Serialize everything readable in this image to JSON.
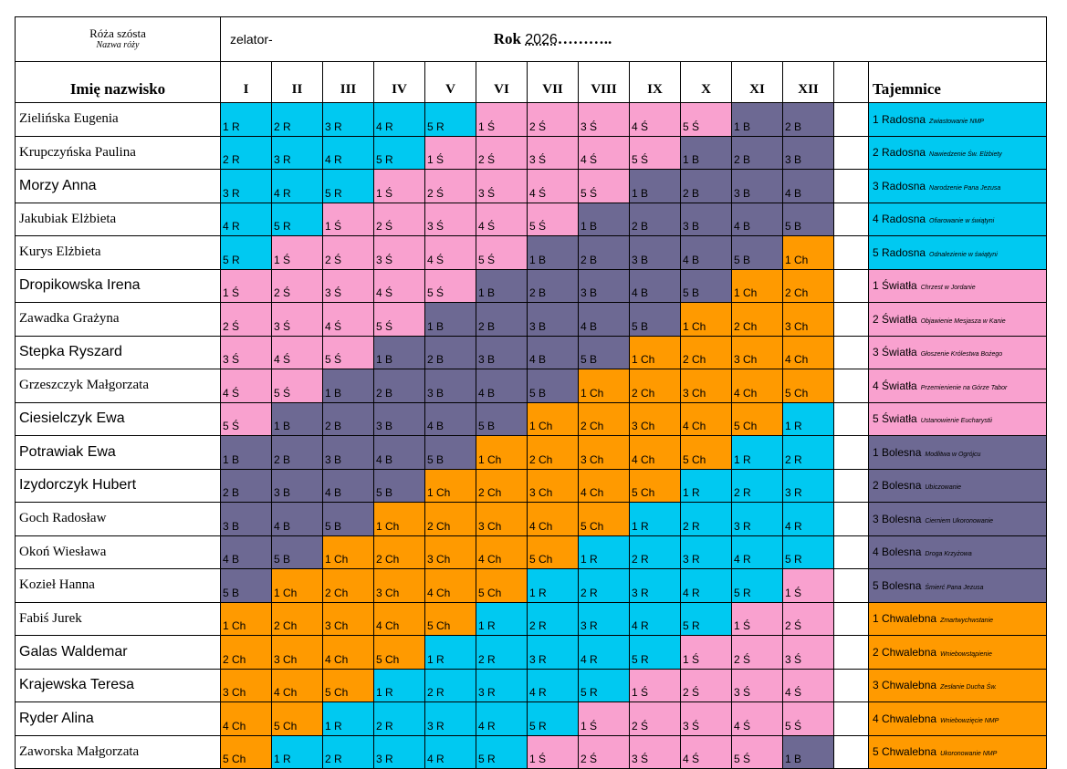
{
  "rose": {
    "name": "Róża szósta",
    "subtitle": "Nazwa róży"
  },
  "zelator_label": "zelator-",
  "rok": {
    "label": "Rok",
    "year": "2026",
    "dots": "……….."
  },
  "headers": {
    "name": "Imię nazwisko",
    "mysteries": "Tajemnice"
  },
  "months": [
    "I",
    "II",
    "III",
    "IV",
    "V",
    "VI",
    "VII",
    "VIII",
    "IX",
    "X",
    "XI",
    "XII"
  ],
  "colors": {
    "R": "#00c9f1",
    "S": "#f9a1cf",
    "B": "#6d6993",
    "Ch": "#ff9a00"
  },
  "rows": [
    {
      "name": "Zielińska Eugenia",
      "cells": [
        "1 R",
        "2 R",
        "3 R",
        "4 R",
        "5 R",
        "1 Ś",
        "2 Ś",
        "3 Ś",
        "4 Ś",
        "5 Ś",
        "1 B",
        "2 B"
      ]
    },
    {
      "name": "Krupczyńska Paulina",
      "cells": [
        "2 R",
        "3 R",
        "4 R",
        "5 R",
        "1 Ś",
        "2 Ś",
        "3 Ś",
        "4 Ś",
        "5 Ś",
        "1 B",
        "2 B",
        "3 B"
      ]
    },
    {
      "name": "Morzy Anna",
      "cells": [
        "3 R",
        "4 R",
        "5 R",
        "1 Ś",
        "2 Ś",
        "3 Ś",
        "4 Ś",
        "5 Ś",
        "1 B",
        "2 B",
        "3 B",
        "4 B"
      ]
    },
    {
      "name": "Jakubiak Elżbieta",
      "cells": [
        "4 R",
        "5 R",
        "1 Ś",
        "2 Ś",
        "3 Ś",
        "4 Ś",
        "5 Ś",
        "1 B",
        "2 B",
        "3 B",
        "4 B",
        "5 B"
      ]
    },
    {
      "name": "Kurys Elżbieta",
      "cells": [
        "5 R",
        "1 Ś",
        "2 Ś",
        "3 Ś",
        "4 Ś",
        "5 Ś",
        "1 B",
        "2 B",
        "3 B",
        "4 B",
        "5 B",
        "1 Ch"
      ]
    },
    {
      "name": "Dropikowska Irena",
      "cells": [
        "1 Ś",
        "2 Ś",
        "3 Ś",
        "4 Ś",
        "5 Ś",
        "1 B",
        "2 B",
        "3 B",
        "4 B",
        "5 B",
        "1 Ch",
        "2 Ch"
      ]
    },
    {
      "name": "Zawadka Grażyna",
      "cells": [
        "2 Ś",
        "3 Ś",
        "4 Ś",
        "5 Ś",
        "1 B",
        "2 B",
        "3 B",
        "4 B",
        "5 B",
        "1 Ch",
        "2 Ch",
        "3 Ch"
      ]
    },
    {
      "name": "Stepka Ryszard",
      "cells": [
        "3 Ś",
        "4 Ś",
        "5 Ś",
        "1 B",
        "2 B",
        "3 B",
        "4 B",
        "5 B",
        "1 Ch",
        "2 Ch",
        "3 Ch",
        "4 Ch"
      ]
    },
    {
      "name": "Grzeszczyk Małgorzata",
      "cells": [
        "4 Ś",
        "5 Ś",
        "1 B",
        "2 B",
        "3 B",
        "4 B",
        "5 B",
        "1 Ch",
        "2 Ch",
        "3 Ch",
        "4 Ch",
        "5 Ch"
      ]
    },
    {
      "name": "Ciesielczyk Ewa",
      "cells": [
        "5 Ś",
        "1 B",
        "2 B",
        "3 B",
        "4 B",
        "5 B",
        "1 Ch",
        "2 Ch",
        "3 Ch",
        "4 Ch",
        "5 Ch",
        "1 R"
      ]
    },
    {
      "name": "Potrawiak Ewa",
      "cells": [
        "1 B",
        "2 B",
        "3 B",
        "4 B",
        "5 B",
        "1 Ch",
        "2 Ch",
        "3 Ch",
        "4 Ch",
        "5 Ch",
        "1 R",
        "2 R"
      ]
    },
    {
      "name": "Izydorczyk Hubert",
      "cells": [
        "2 B",
        "3 B",
        "4 B",
        "5 B",
        "1 Ch",
        "2 Ch",
        "3 Ch",
        "4 Ch",
        "5 Ch",
        "1 R",
        "2 R",
        "3 R"
      ]
    },
    {
      "name": "Goch Radosław",
      "cells": [
        "3 B",
        "4 B",
        "5 B",
        "1 Ch",
        "2 Ch",
        "3 Ch",
        "4 Ch",
        "5 Ch",
        "1 R",
        "2 R",
        "3 R",
        "4 R"
      ]
    },
    {
      "name": "Okoń Wiesława",
      "cells": [
        "4 B",
        "5 B",
        "1 Ch",
        "2 Ch",
        "3 Ch",
        "4 Ch",
        "5 Ch",
        "1 R",
        "2 R",
        "3 R",
        "4 R",
        "5 R"
      ]
    },
    {
      "name": "Kozieł Hanna",
      "cells": [
        "5 B",
        "1 Ch",
        "2 Ch",
        "3 Ch",
        "4 Ch",
        "5 Ch",
        "1 R",
        "2 R",
        "3 R",
        "4 R",
        "5 R",
        "1 Ś"
      ]
    },
    {
      "name": "Fabiś Jurek",
      "cells": [
        "1 Ch",
        "2 Ch",
        "3 Ch",
        "4 Ch",
        "5 Ch",
        "1 R",
        "2 R",
        "3 R",
        "4 R",
        "5 R",
        "1 Ś",
        "2 Ś"
      ]
    },
    {
      "name": "Galas Waldemar",
      "cells": [
        "2 Ch",
        "3 Ch",
        "4 Ch",
        "5 Ch",
        "1 R",
        "2 R",
        "3 R",
        "4 R",
        "5 R",
        "1 Ś",
        "2 Ś",
        "3 Ś"
      ]
    },
    {
      "name": "Krajewska Teresa",
      "cells": [
        "3 Ch",
        "4 Ch",
        "5 Ch",
        "1 R",
        "2 R",
        "3 R",
        "4 R",
        "5 R",
        "1 Ś",
        "2 Ś",
        "3 Ś",
        "4 Ś"
      ]
    },
    {
      "name": "Ryder Alina",
      "cells": [
        "4 Ch",
        "5 Ch",
        "1 R",
        "2 R",
        "3 R",
        "4 R",
        "5 R",
        "1 Ś",
        "2 Ś",
        "3 Ś",
        "4 Ś",
        "5 Ś"
      ]
    },
    {
      "name": "Zaworska Małgorzata",
      "cells": [
        "5 Ch",
        "1 R",
        "2 R",
        "3 R",
        "4 R",
        "5 R",
        "1 Ś",
        "2 Ś",
        "3 Ś",
        "4 Ś",
        "5 Ś",
        "1 B"
      ]
    }
  ],
  "mysteries": [
    {
      "group": "1 Radosna",
      "detail": "Zwiastowanie NMP",
      "kind": "R"
    },
    {
      "group": "2 Radosna",
      "detail": "Nawiedzenie Św. Elżbiety",
      "kind": "R"
    },
    {
      "group": "3 Radosna",
      "detail": "Narodzenie Pana Jezusa",
      "kind": "R"
    },
    {
      "group": "4 Radosna",
      "detail": "Ofiarowanie w świątyni",
      "kind": "R"
    },
    {
      "group": "5 Radosna",
      "detail": "Odnalezienie w świątyni",
      "kind": "R"
    },
    {
      "group": "1 Światła",
      "detail": "Chrzest  w Jordanie",
      "kind": "S"
    },
    {
      "group": "2 Światła",
      "detail": "Objawienie Mesjasza w Kanie",
      "kind": "S"
    },
    {
      "group": "3 Światła",
      "detail": "Głoszenie Królestwa Bożego",
      "kind": "S"
    },
    {
      "group": "4 Światła",
      "detail": "Przemienienie na Górze Tabor",
      "kind": "S"
    },
    {
      "group": "5 Światła",
      "detail": "Ustanowienie Eucharystii",
      "kind": "S"
    },
    {
      "group": "1 Bolesna",
      "detail": "Modlitwa w Ogrójcu",
      "kind": "B"
    },
    {
      "group": "2 Bolesna",
      "detail": "Ubiczowanie",
      "kind": "B"
    },
    {
      "group": "3 Bolesna",
      "detail": "Cierniem Ukoronowanie",
      "kind": "B"
    },
    {
      "group": "4 Bolesna",
      "detail": "Droga Krzyżowa",
      "kind": "B"
    },
    {
      "group": "5 Bolesna",
      "detail": "Śmierć Pana Jezusa",
      "kind": "B"
    },
    {
      "group": "1 Chwalebna",
      "detail": "Zmartwychwstanie",
      "kind": "Ch"
    },
    {
      "group": "2 Chwalebna",
      "detail": "Wniebowstąpienie",
      "kind": "Ch"
    },
    {
      "group": "3 Chwalebna",
      "detail": "Zesłanie Ducha Św.",
      "kind": "Ch"
    },
    {
      "group": "4 Chwalebna",
      "detail": "Wniebowzięcie NMP",
      "kind": "Ch"
    },
    {
      "group": "5 Chwalebna",
      "detail": "Ukoronowanie NMP",
      "kind": "Ch"
    }
  ]
}
